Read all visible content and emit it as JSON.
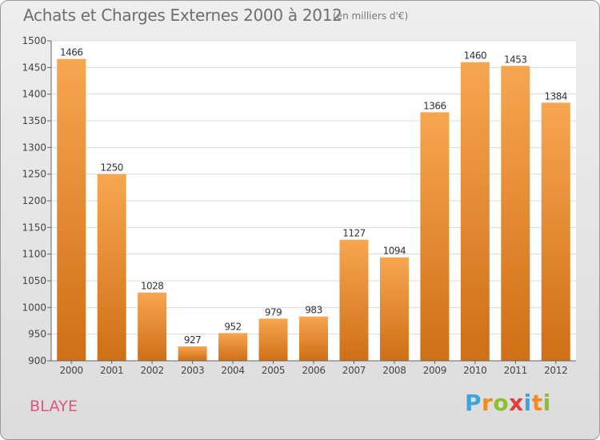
{
  "header": {
    "title": "Achats et Charges Externes 2000 à 2012",
    "subtitle": "(en milliers d'€)"
  },
  "footer": {
    "commune": "BLAYE",
    "logo": {
      "letters": [
        "P",
        "r",
        "o",
        "x",
        "i",
        "t",
        "i"
      ]
    }
  },
  "colors": {
    "bar_top": "#f7a650",
    "bar_bottom": "#cf6f16",
    "plot_bg": "#ffffff",
    "grid": "#d8d8d8"
  },
  "chart_data": {
    "type": "bar",
    "title": "Achats et Charges Externes 2000 à 2012",
    "xlabel": "",
    "ylabel": "",
    "categories": [
      "2000",
      "2001",
      "2002",
      "2003",
      "2004",
      "2005",
      "2006",
      "2007",
      "2008",
      "2009",
      "2010",
      "2011",
      "2012"
    ],
    "values": [
      1466,
      1250,
      1028,
      927,
      952,
      979,
      983,
      1127,
      1094,
      1366,
      1460,
      1453,
      1384
    ],
    "ylim": [
      900,
      1500
    ],
    "yticks": [
      900,
      950,
      1000,
      1050,
      1100,
      1150,
      1200,
      1250,
      1300,
      1350,
      1400,
      1450,
      1500
    ],
    "grid": true,
    "legend": "none"
  }
}
